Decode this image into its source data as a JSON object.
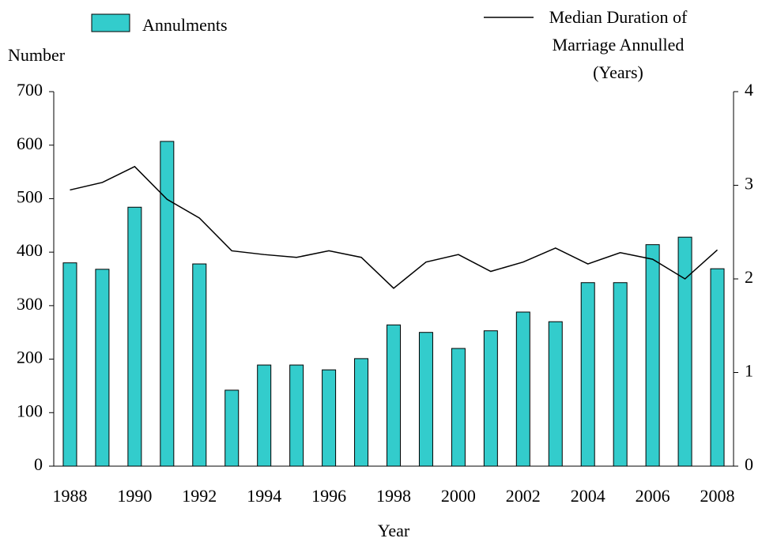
{
  "chart_data": {
    "type": "bar",
    "categories": [
      "1988",
      null,
      "1990",
      null,
      "1992",
      null,
      "1994",
      null,
      "1996",
      null,
      "1998",
      null,
      "2000",
      null,
      "2002",
      null,
      "2004",
      null,
      "2006",
      null,
      "2008"
    ],
    "series": [
      {
        "name": "Annulments",
        "type": "bar",
        "color": "#33cccc",
        "values": [
          380,
          368,
          484,
          607,
          378,
          142,
          189,
          189,
          180,
          201,
          264,
          250,
          220,
          253,
          288,
          270,
          343,
          343,
          414,
          428,
          369
        ]
      },
      {
        "name": "Median Duration of Marriage Annulled (Years)",
        "type": "line",
        "axis": "y2",
        "color": "#000000",
        "values": [
          2.95,
          3.03,
          3.2,
          2.85,
          2.65,
          2.3,
          2.26,
          2.23,
          2.3,
          2.23,
          1.9,
          2.18,
          2.26,
          2.08,
          2.18,
          2.33,
          2.16,
          2.28,
          2.21,
          2.0,
          2.31
        ]
      }
    ],
    "ylabel": "Number",
    "xlabel": "Year",
    "ylim": [
      0,
      700
    ],
    "yticks": [
      0,
      100,
      200,
      300,
      400,
      500,
      600,
      700
    ],
    "y2lim": [
      0,
      4
    ],
    "y2ticks": [
      0,
      1,
      2,
      3,
      4
    ]
  }
}
